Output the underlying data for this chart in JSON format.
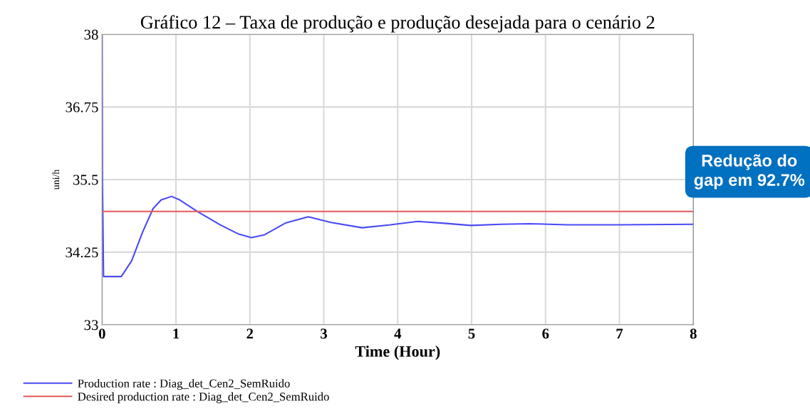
{
  "chart_data": {
    "type": "line",
    "title": "Gráfico 12 – Taxa de produção e produção desejada para o cenário 2",
    "xlabel": "Time (Hour)",
    "ylabel": "uni/h",
    "series": [
      {
        "name": "Production rate : Diag_det_Cen2_SemRuido",
        "color": "#4a4af5",
        "x": [
          0,
          0.005,
          0.02,
          0.1,
          0.26,
          0.4,
          0.55,
          0.69,
          0.8,
          0.94,
          1.05,
          1.29,
          1.6,
          1.85,
          2.02,
          2.2,
          2.48,
          2.79,
          3.1,
          3.52,
          3.9,
          4.27,
          4.6,
          4.99,
          5.4,
          5.78,
          6.3,
          7,
          8
        ],
        "values": [
          38,
          35.5,
          33.83,
          33.83,
          33.83,
          34.1,
          34.6,
          35.0,
          35.15,
          35.21,
          35.15,
          34.95,
          34.72,
          34.56,
          34.5,
          34.55,
          34.75,
          34.86,
          34.76,
          34.67,
          34.72,
          34.78,
          34.75,
          34.71,
          34.73,
          34.74,
          34.72,
          34.72,
          34.73
        ]
      },
      {
        "name": "Desired production rate : Diag_det_Cen2_SemRuido",
        "color": "#e55a5a",
        "x": [
          0,
          8
        ],
        "values": [
          34.95,
          34.95
        ]
      }
    ],
    "xlim": [
      0,
      8
    ],
    "xticks": [
      0,
      1,
      2,
      3,
      4,
      5,
      6,
      7,
      8
    ],
    "ylim": [
      33,
      38
    ],
    "yticks": [
      33,
      34.25,
      35.5,
      36.75,
      38
    ],
    "grid": true,
    "legend": "bottom",
    "annotations": [
      "Redução do\ngap em 92.7%"
    ]
  }
}
